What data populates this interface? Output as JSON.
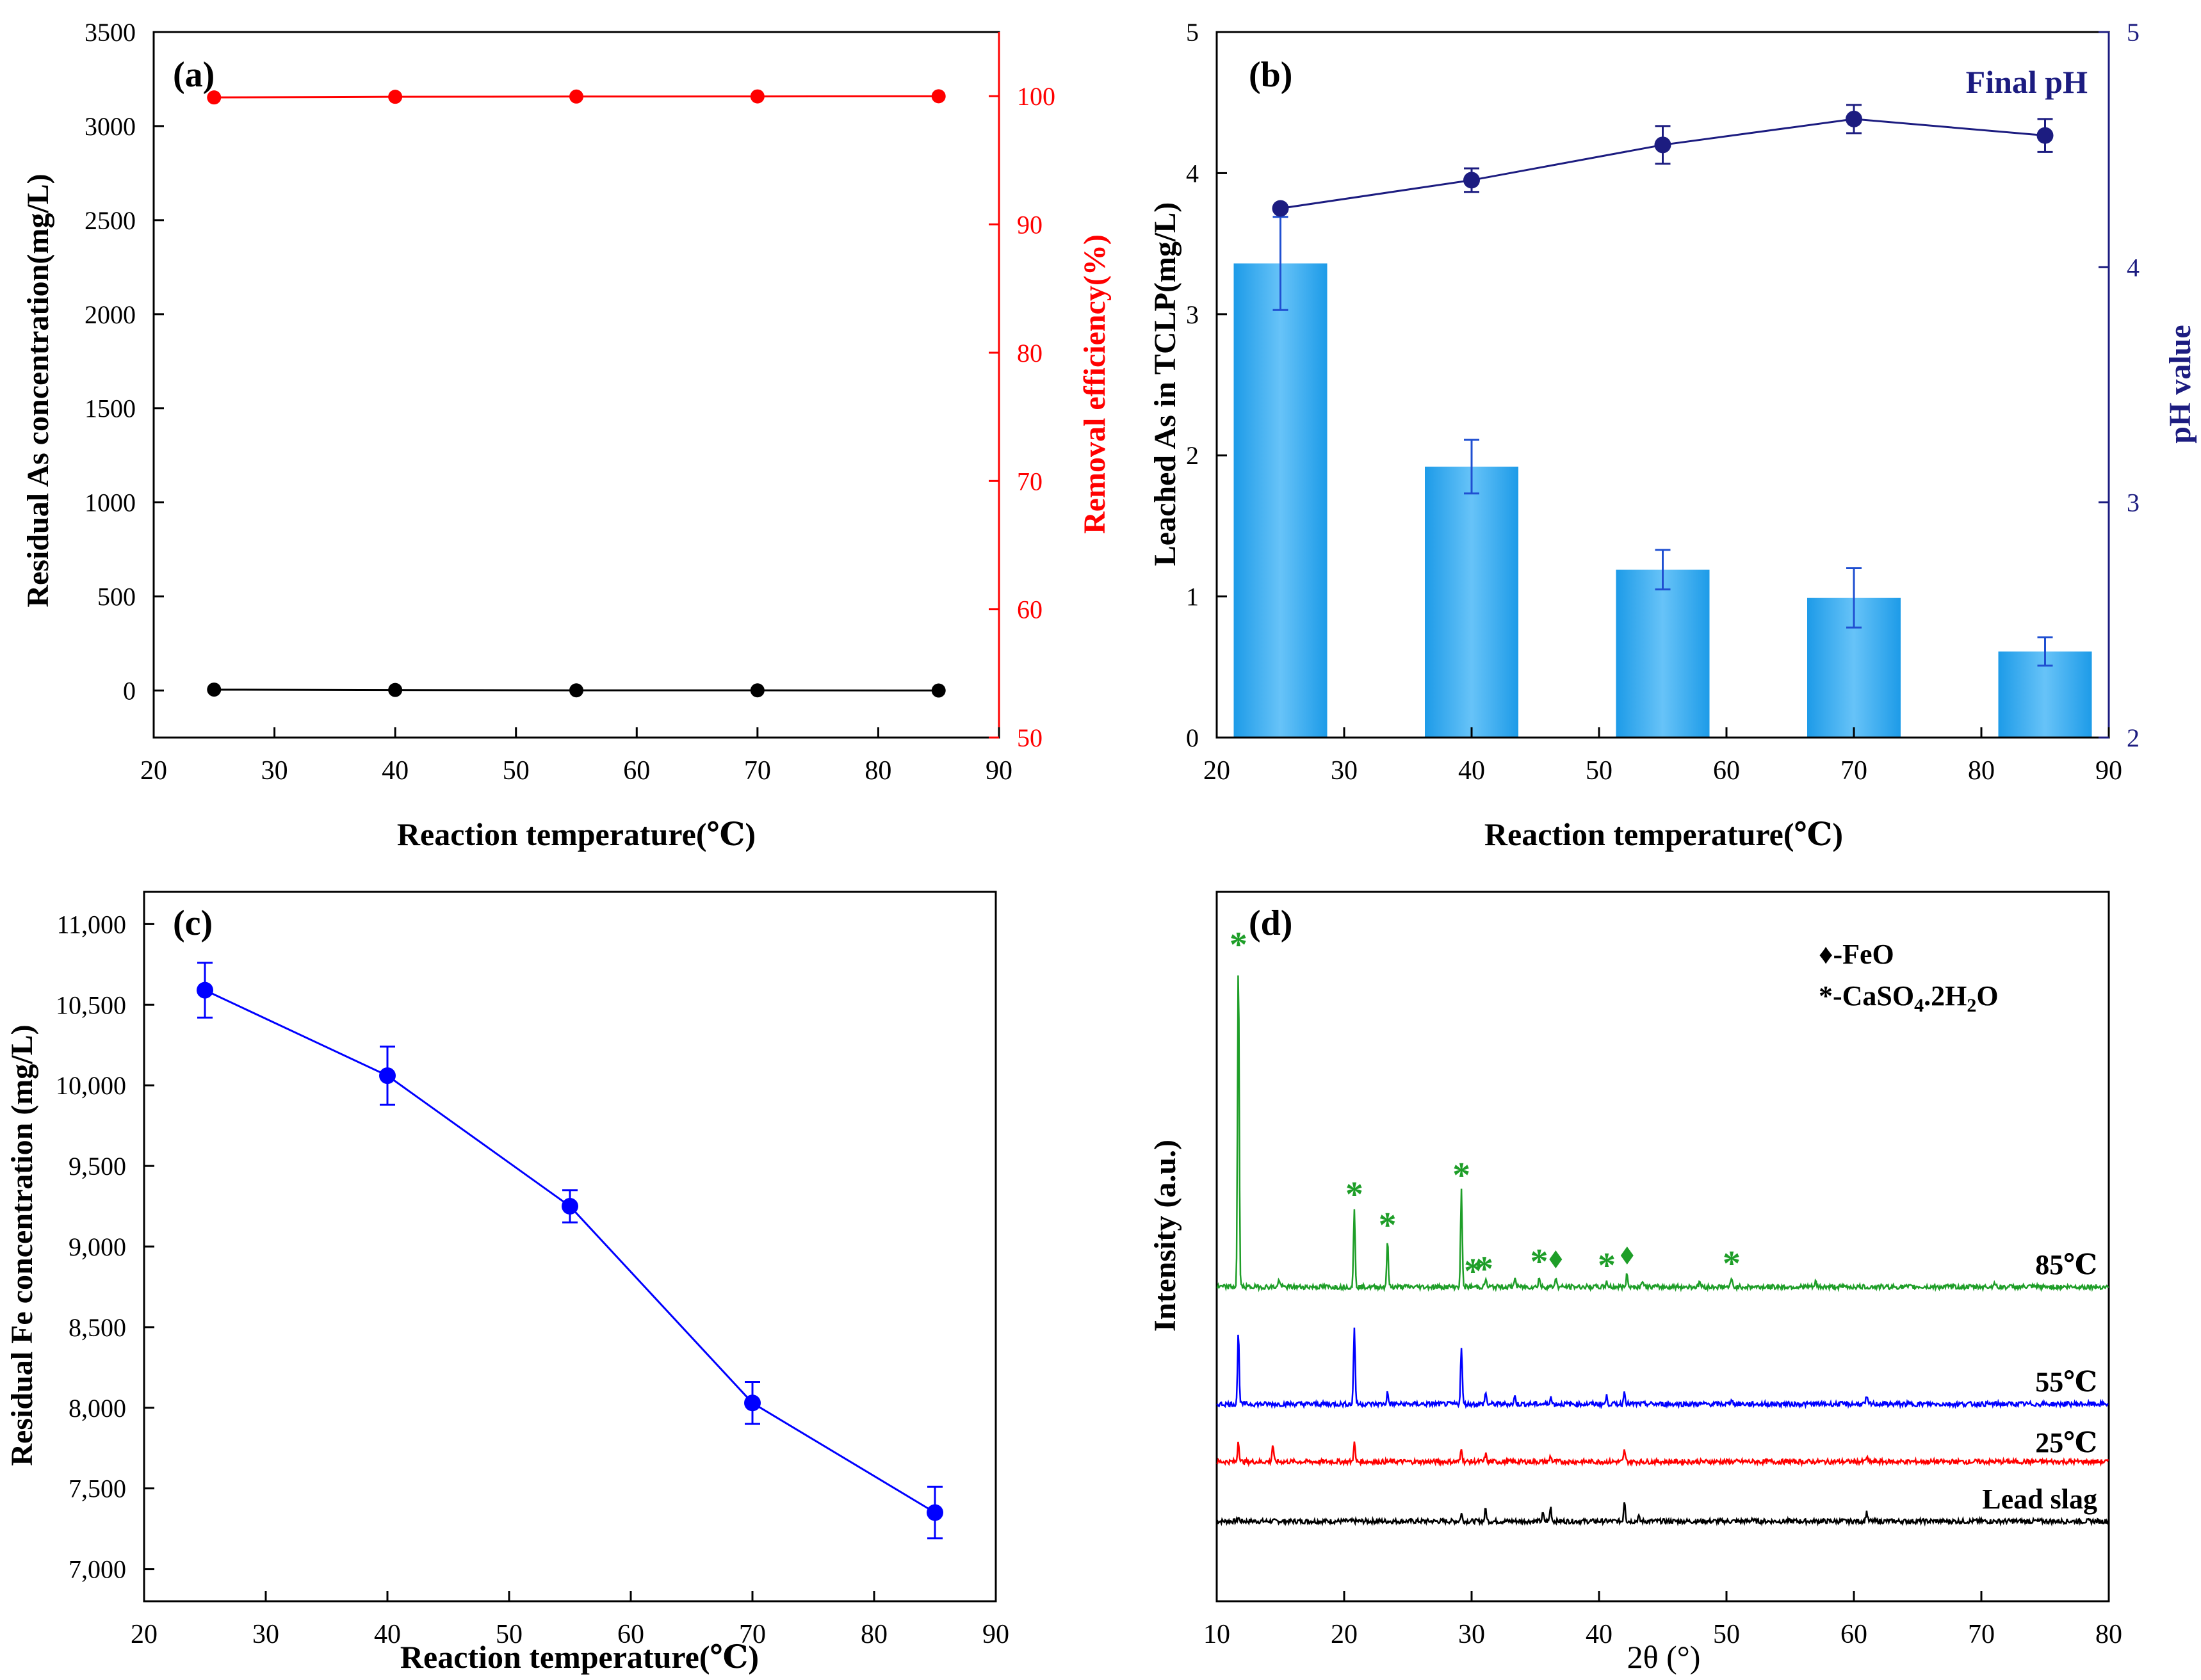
{
  "chart_data": [
    {
      "id": "a",
      "type": "line",
      "panel_label": "(a)",
      "xlabel": "Reaction temperature(℃)",
      "ylabel": "Residual As concentration(mg/L)",
      "y2label": "Removal efficiency(%)",
      "xlim": [
        20,
        90
      ],
      "ylim": [
        -250,
        3500
      ],
      "y2lim": [
        50,
        105
      ],
      "xticks": [
        "20",
        "30",
        "40",
        "50",
        "60",
        "70",
        "80",
        "90"
      ],
      "yticks": [
        "0",
        "500",
        "1000",
        "1500",
        "2000",
        "2500",
        "3000",
        "3500"
      ],
      "y2ticks": [
        "50",
        "60",
        "70",
        "80",
        "90",
        "100"
      ],
      "colors": {
        "left": "#000000",
        "right": "#ff0000"
      },
      "series": [
        {
          "name": "Residual As",
          "axis": "left",
          "color": "#000000",
          "x": [
            25,
            40,
            55,
            70,
            85
          ],
          "y": [
            5,
            3,
            1,
            1,
            0
          ]
        },
        {
          "name": "Removal efficiency",
          "axis": "right",
          "color": "#ff0000",
          "x": [
            25,
            40,
            55,
            70,
            85
          ],
          "y": [
            99.9,
            99.95,
            99.97,
            99.98,
            99.99
          ]
        }
      ]
    },
    {
      "id": "b",
      "type": "bar",
      "panel_label": "(b)",
      "xlabel": "Reaction temperature(℃)",
      "ylabel": "Leached As in TCLP(mg/L)",
      "y2label": "pH value",
      "legend": "Final pH",
      "xlim": [
        20,
        90
      ],
      "ylim": [
        0,
        5
      ],
      "y2lim": [
        2,
        5
      ],
      "xticks": [
        "20",
        "30",
        "40",
        "50",
        "60",
        "70",
        "80",
        "90"
      ],
      "yticks": [
        "0",
        "1",
        "2",
        "3",
        "4",
        "5"
      ],
      "y2ticks": [
        "2",
        "3",
        "4",
        "5"
      ],
      "colors": {
        "bar": "#3aabf0",
        "bar_light": "#9fd6fb",
        "ph": "#1c1c80",
        "errorbar": "#1f4fd1"
      },
      "bars": {
        "x": [
          25,
          40,
          55,
          70,
          85
        ],
        "values": [
          3.36,
          1.92,
          1.19,
          0.99,
          0.61
        ],
        "errors": [
          0.33,
          0.19,
          0.14,
          0.21,
          0.1
        ]
      },
      "ph": {
        "x": [
          25,
          40,
          55,
          70,
          85
        ],
        "values": [
          4.25,
          4.37,
          4.52,
          4.63,
          4.56
        ],
        "errors": [
          0,
          0.05,
          0.08,
          0.06,
          0.07
        ]
      }
    },
    {
      "id": "c",
      "type": "line",
      "panel_label": "(c)",
      "xlabel": "Reaction temperature(℃)",
      "ylabel": "Residual Fe concentration (mg/L)",
      "xlim": [
        20,
        90
      ],
      "ylim": [
        6800,
        11200
      ],
      "xticks": [
        "20",
        "30",
        "40",
        "50",
        "60",
        "70",
        "80",
        "90"
      ],
      "yticks": [
        "7,000",
        "7,500",
        "8,000",
        "8,500",
        "9,000",
        "9,500",
        "10,000",
        "10,500",
        "11,000"
      ],
      "color": "#0000ff",
      "x": [
        25,
        40,
        55,
        70,
        85
      ],
      "values": [
        10590,
        10060,
        9250,
        8030,
        7350
      ],
      "errors": [
        170,
        180,
        100,
        130,
        160
      ]
    },
    {
      "id": "d",
      "type": "line",
      "panel_label": "(d)",
      "xlabel": "2θ (°)",
      "ylabel": "Intensity (a.u.)",
      "xlim": [
        10,
        80
      ],
      "xticks": [
        "10",
        "20",
        "30",
        "40",
        "50",
        "60",
        "70",
        "80"
      ],
      "legend": {
        "feo": "♦-FeO",
        "gypsum_prefix": "*-CaSO",
        "sub4": "4",
        "mid": ".2H",
        "sub2": "2",
        "suffix": "O"
      },
      "series": [
        {
          "name": "Lead slag",
          "color": "#000000",
          "peaks": [
            [
              11.7,
              0.04
            ],
            [
              29.2,
              0.08
            ],
            [
              31.1,
              0.13
            ],
            [
              35.6,
              0.08
            ],
            [
              36.2,
              0.15
            ],
            [
              42.0,
              0.22
            ],
            [
              43.1,
              0.05
            ],
            [
              61.0,
              0.1
            ],
            [
              52.0,
              0.03
            ]
          ]
        },
        {
          "name": "25℃",
          "color": "#ff0000",
          "peaks": [
            [
              11.7,
              0.22
            ],
            [
              14.4,
              0.18
            ],
            [
              20.8,
              0.2
            ],
            [
              29.2,
              0.15
            ],
            [
              31.1,
              0.08
            ],
            [
              36.2,
              0.06
            ],
            [
              42.0,
              0.12
            ],
            [
              61.0,
              0.05
            ]
          ]
        },
        {
          "name": "55℃",
          "color": "#0000ff",
          "peaks": [
            [
              11.7,
              0.74
            ],
            [
              20.8,
              0.8
            ],
            [
              23.4,
              0.12
            ],
            [
              29.2,
              0.6
            ],
            [
              31.1,
              0.12
            ],
            [
              33.4,
              0.08
            ],
            [
              36.2,
              0.08
            ],
            [
              40.6,
              0.08
            ],
            [
              42.0,
              0.14
            ],
            [
              50.4,
              0.06
            ],
            [
              61.0,
              0.07
            ]
          ]
        },
        {
          "name": "85℃",
          "color": "#1e9e28",
          "peaks": [
            [
              11.7,
              3.4
            ],
            [
              14.9,
              0.08
            ],
            [
              20.8,
              0.8
            ],
            [
              23.4,
              0.48
            ],
            [
              29.2,
              1.0
            ],
            [
              31.1,
              0.08
            ],
            [
              33.4,
              0.1
            ],
            [
              35.3,
              0.1
            ],
            [
              36.6,
              0.1
            ],
            [
              40.6,
              0.06
            ],
            [
              42.2,
              0.14
            ],
            [
              43.4,
              0.08
            ],
            [
              47.9,
              0.06
            ],
            [
              50.4,
              0.08
            ],
            [
              57.0,
              0.05
            ],
            [
              71.0,
              0.05
            ]
          ]
        }
      ],
      "markers": [
        {
          "x": 11.7,
          "type": "gypsum"
        },
        {
          "x": 20.8,
          "type": "gypsum"
        },
        {
          "x": 23.4,
          "type": "gypsum"
        },
        {
          "x": 29.2,
          "type": "gypsum"
        },
        {
          "x": 30.1,
          "type": "gypsum"
        },
        {
          "x": 31.0,
          "type": "gypsum"
        },
        {
          "x": 35.3,
          "type": "gypsum"
        },
        {
          "x": 36.6,
          "type": "feo"
        },
        {
          "x": 40.6,
          "type": "gypsum"
        },
        {
          "x": 42.2,
          "type": "feo"
        },
        {
          "x": 50.4,
          "type": "gypsum"
        }
      ]
    }
  ]
}
